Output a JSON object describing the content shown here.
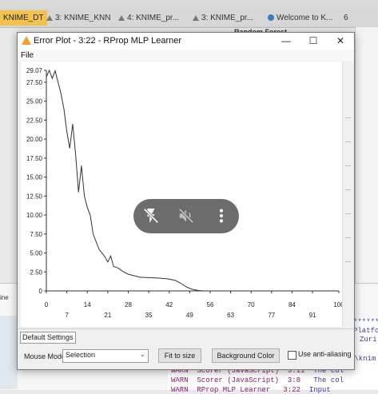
{
  "tabs": [
    {
      "label": "KNIME_DT",
      "active": true
    },
    {
      "label": "3: KNIME_KNN",
      "icon": "warning-icon"
    },
    {
      "label": "4: KNIME_pr...",
      "icon": "warning-icon"
    },
    {
      "label": "3: KNIME_pr...",
      "icon": "warning-icon"
    },
    {
      "label": "Welcome to K...",
      "icon": "globe-icon"
    },
    {
      "label": "6"
    }
  ],
  "background_node_label": "Random Forest",
  "dialog": {
    "title": "Error Plot - 3:22 - RProp MLP Learner",
    "menu_file": "File",
    "buttons": {
      "minimize": "—",
      "maximize": "☐",
      "close": "✕"
    }
  },
  "chart_data": {
    "type": "line",
    "title": "",
    "xlabel": "",
    "ylabel": "",
    "xlim": [
      0,
      100
    ],
    "ylim": [
      0,
      29.07
    ],
    "y_ticks": [
      "0",
      "2.50",
      "5.00",
      "7.50",
      "10.00",
      "12.50",
      "15.00",
      "17.50",
      "20.00",
      "22.50",
      "25.00",
      "27.50",
      "29.07"
    ],
    "x_ticks": [
      "0",
      "7",
      "14",
      "21",
      "28",
      "35",
      "42",
      "49",
      "56",
      "63",
      "70",
      "77",
      "84",
      "91",
      "100"
    ],
    "series": [
      {
        "x": [
          0,
          1,
          2,
          3,
          4,
          5,
          6,
          7,
          8,
          9,
          10,
          11,
          12,
          13,
          14,
          15,
          16,
          17,
          18,
          19,
          20,
          21,
          22,
          23,
          24,
          25,
          26,
          28,
          30,
          32,
          35,
          38,
          41,
          42,
          44,
          46,
          48,
          50,
          52,
          54
        ],
        "y": [
          28.2,
          29.07,
          28.0,
          29.0,
          27.5,
          26.0,
          24.0,
          21.0,
          18.8,
          22.0,
          18.0,
          13.0,
          16.5,
          12.5,
          11.0,
          10.0,
          7.5,
          6.5,
          5.5,
          5.0,
          4.5,
          3.8,
          4.6,
          3.2,
          3.1,
          2.9,
          2.6,
          2.2,
          2.0,
          1.8,
          1.75,
          1.7,
          1.6,
          1.55,
          1.4,
          1.0,
          0.5,
          0.2,
          0.05,
          0.0
        ]
      }
    ]
  },
  "overlay": {
    "icons": [
      "flash-off-icon",
      "volume-off-icon",
      "more-vert-icon"
    ]
  },
  "tab_default_settings": "Default Settings",
  "controls": {
    "mouse_mode_label": "Mouse Mode",
    "mouse_mode_value": "Selection",
    "fit_to_size": "Fit to size",
    "background_color": "Background Color",
    "anti_aliasing": "Use anti-aliasing"
  },
  "console": {
    "lines": [
      {
        "text": "**********"
      },
      {
        "text": "Platfo"
      },
      {
        "text": "Zuri"
      },
      {
        "text": "s\\knim"
      },
      {
        "text": "WARN  Scorer (JavaScript)  3:11",
        "suffix": "The col"
      },
      {
        "text": "WARN  Scorer (JavaScript)  3:8",
        "suffix": "The col"
      },
      {
        "text": "WARN  RProp MLP Learner   3:22",
        "suffix": "Input"
      }
    ]
  },
  "left_panel_label": "ine"
}
